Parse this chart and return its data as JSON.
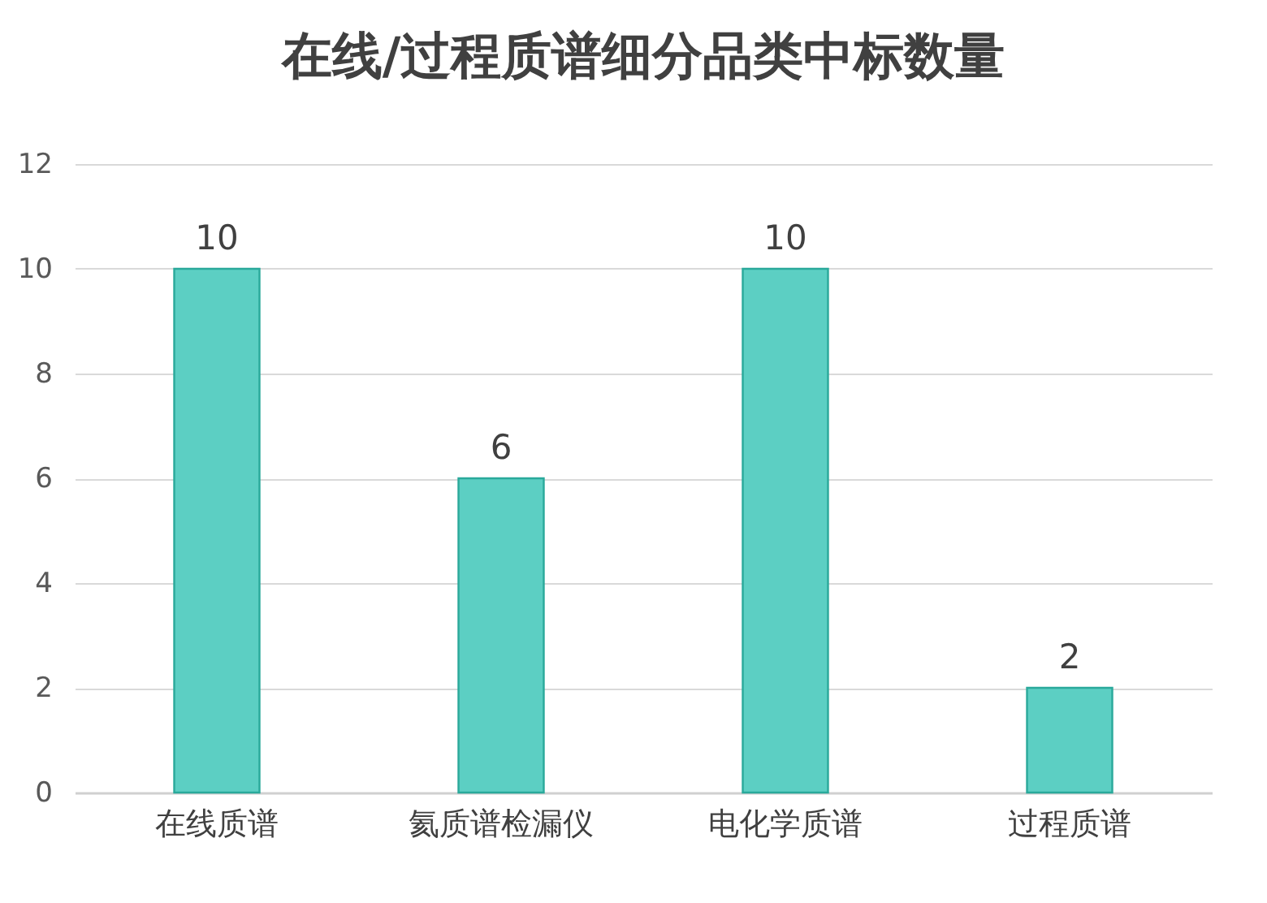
{
  "chart_data": {
    "type": "bar",
    "title": "在线/过程质谱细分品类中标数量",
    "categories": [
      "在线质谱",
      "氦质谱检漏仪",
      "电化学质谱",
      "过程质谱"
    ],
    "values": [
      10,
      6,
      10,
      2
    ],
    "color": "#5ccfc3",
    "ylim": [
      0,
      12
    ],
    "yticks": [
      0,
      2,
      4,
      6,
      8,
      10,
      12
    ],
    "grid": "y",
    "data_labels": true
  }
}
